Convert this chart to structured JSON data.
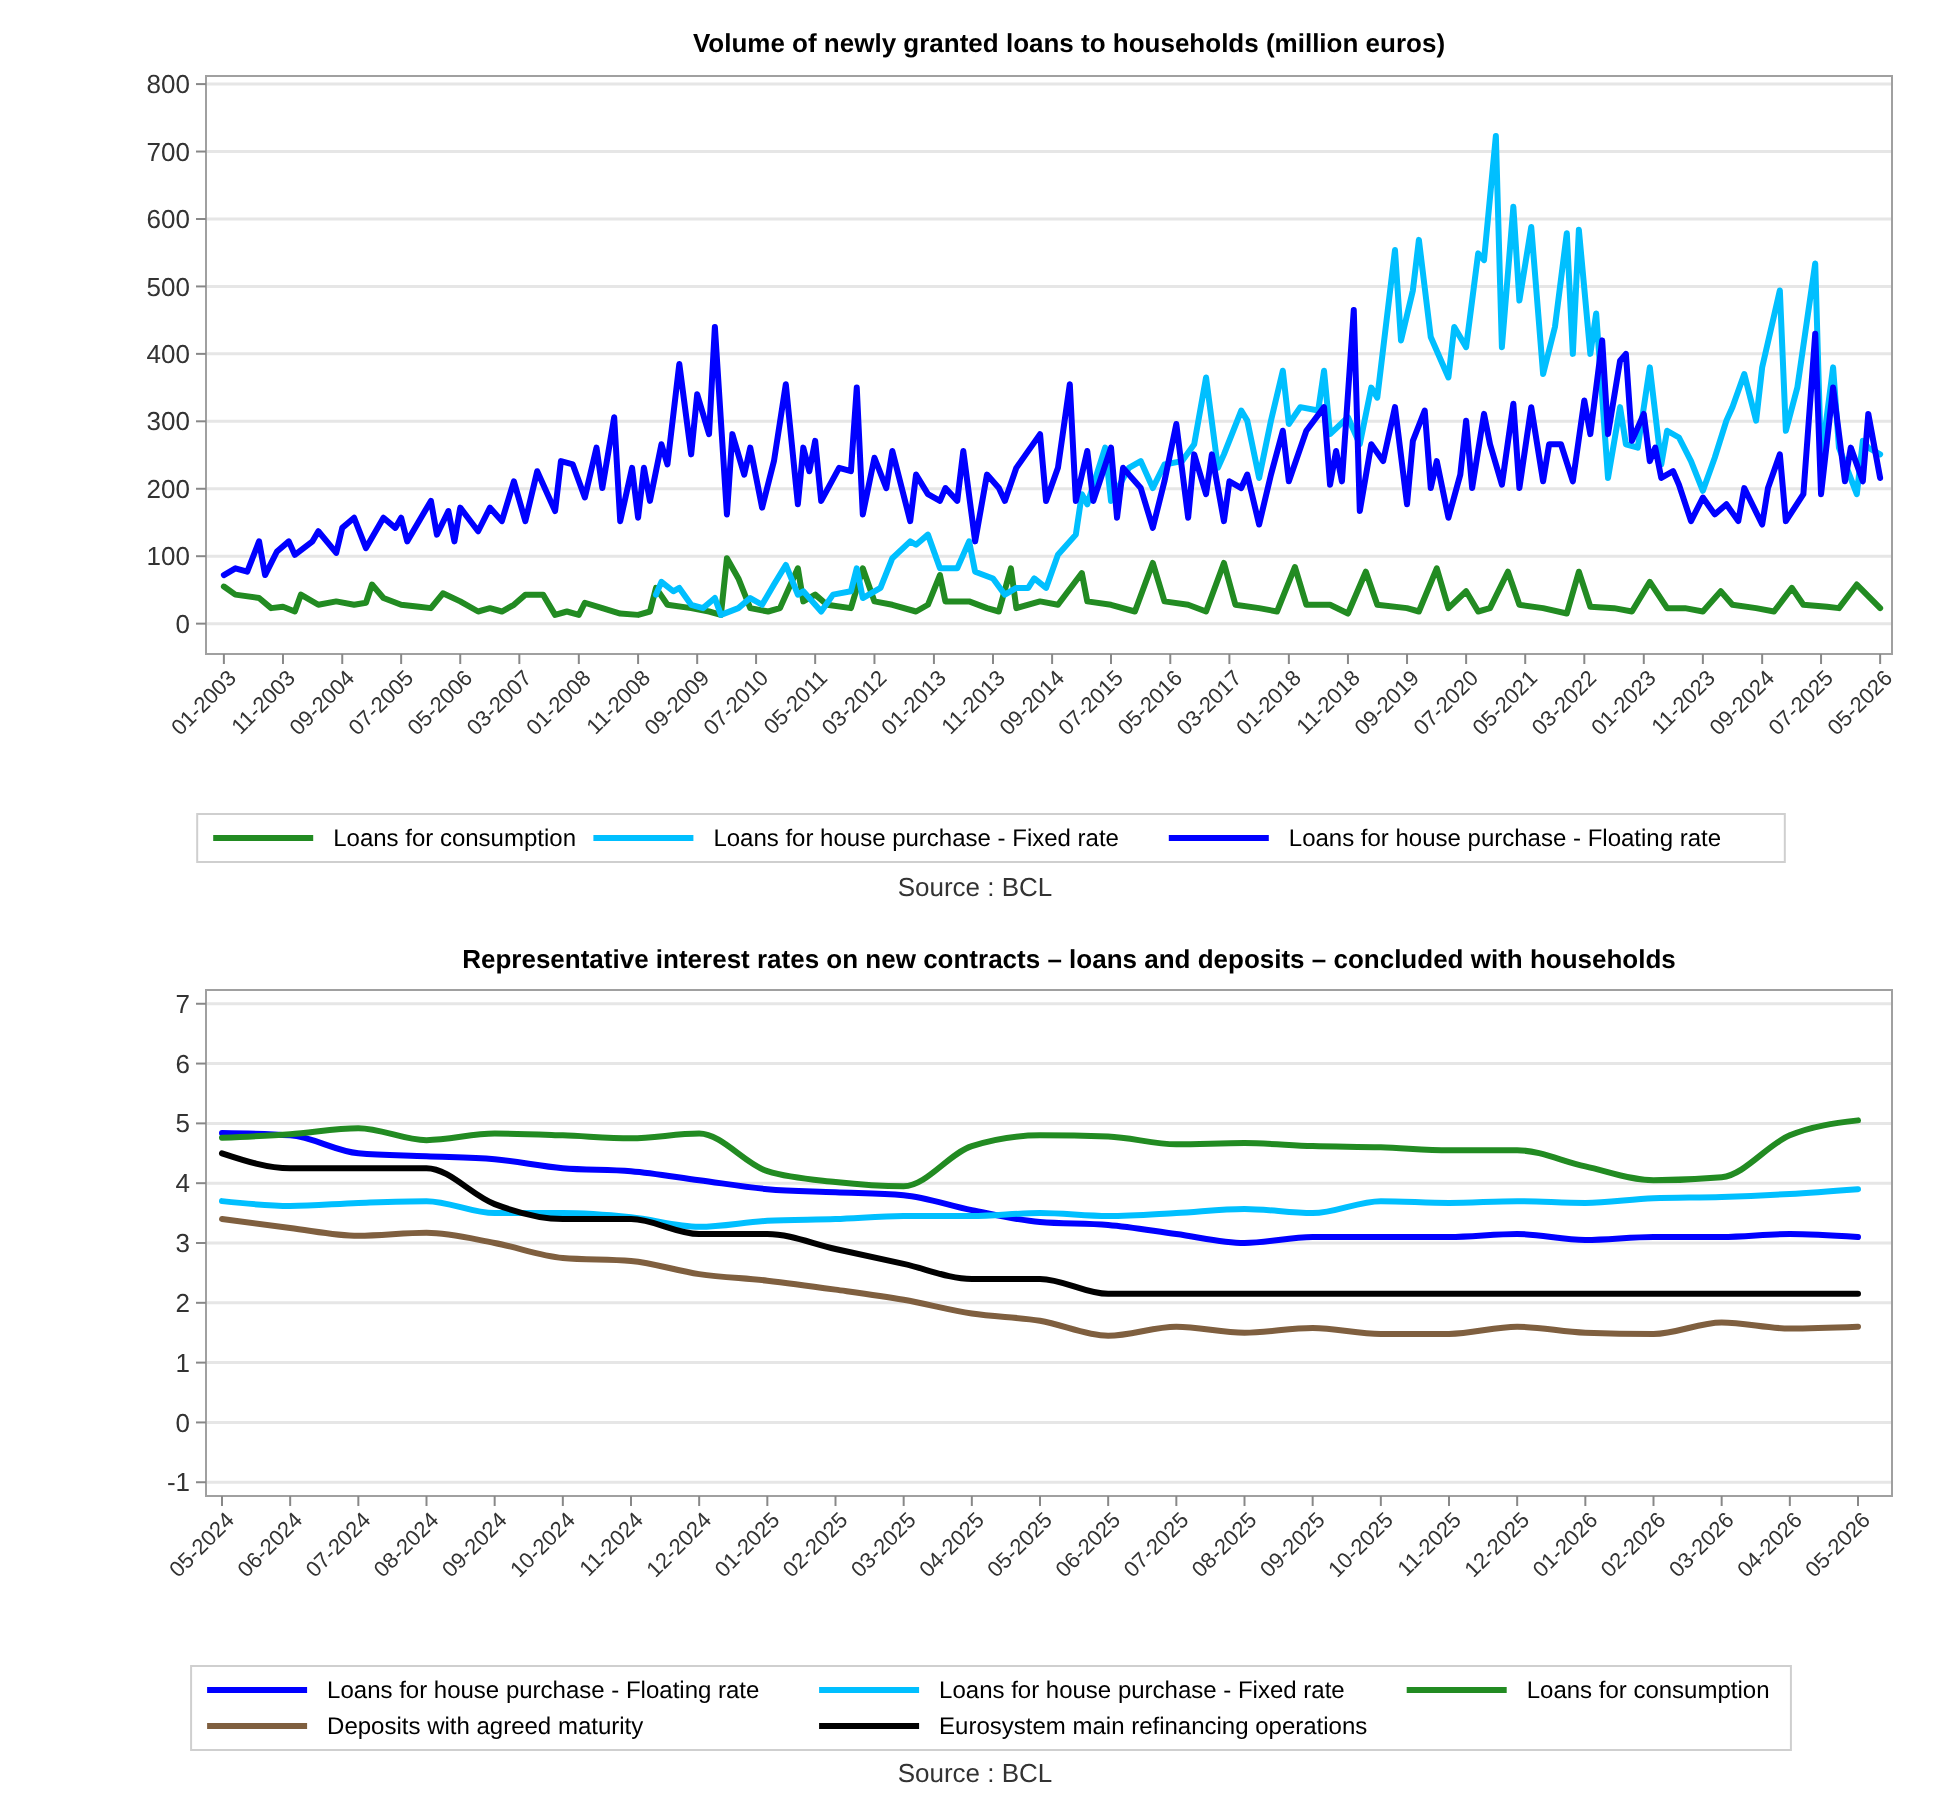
{
  "chart_data": [
    {
      "type": "line",
      "title": "Volume of newly granted loans to households (million euros)",
      "annotations": [
        "Source : BCL"
      ],
      "xlim": [
        "2002-10",
        "2026-07"
      ],
      "xticks": [
        {
          "value": "2003-01",
          "label": "01-2003"
        },
        {
          "value": "2003-11",
          "label": "11-2003"
        },
        {
          "value": "2004-09",
          "label": "09-2004"
        },
        {
          "value": "2005-07",
          "label": "07-2005"
        },
        {
          "value": "2006-05",
          "label": "05-2006"
        },
        {
          "value": "2007-03",
          "label": "03-2007"
        },
        {
          "value": "2008-01",
          "label": "01-2008"
        },
        {
          "value": "2008-11",
          "label": "11-2008"
        },
        {
          "value": "2009-09",
          "label": "09-2009"
        },
        {
          "value": "2010-07",
          "label": "07-2010"
        },
        {
          "value": "2011-05",
          "label": "05-2011"
        },
        {
          "value": "2012-03",
          "label": "03-2012"
        },
        {
          "value": "2013-01",
          "label": "01-2013"
        },
        {
          "value": "2013-11",
          "label": "11-2013"
        },
        {
          "value": "2014-09",
          "label": "09-2014"
        },
        {
          "value": "2015-07",
          "label": "07-2015"
        },
        {
          "value": "2016-05",
          "label": "05-2016"
        },
        {
          "value": "2017-03",
          "label": "03-2017"
        },
        {
          "value": "2018-01",
          "label": "01-2018"
        },
        {
          "value": "2018-11",
          "label": "11-2018"
        },
        {
          "value": "2019-09",
          "label": "09-2019"
        },
        {
          "value": "2020-07",
          "label": "07-2020"
        },
        {
          "value": "2021-05",
          "label": "05-2021"
        },
        {
          "value": "2022-03",
          "label": "03-2022"
        },
        {
          "value": "2023-01",
          "label": "01-2023"
        },
        {
          "value": "2023-11",
          "label": "11-2023"
        },
        {
          "value": "2024-09",
          "label": "09-2024"
        },
        {
          "value": "2025-07",
          "label": "07-2025"
        },
        {
          "value": "2026-05",
          "label": "05-2026"
        }
      ],
      "ylim": [
        -45,
        812
      ],
      "yticks": [
        0,
        100,
        200,
        300,
        400,
        500,
        600,
        700,
        800
      ],
      "grid": "y",
      "legend": "bottom",
      "marker": "none",
      "line_style": "solid",
      "series": [
        {
          "name": "Loans for consumption",
          "color": "#228b22",
          "x": [
            "2003-01",
            "2003-03",
            "2003-07",
            "2003-09",
            "2003-11",
            "2004-01",
            "2004-02",
            "2004-05",
            "2004-08",
            "2004-11",
            "2005-01",
            "2005-02",
            "2005-04",
            "2005-07",
            "2005-10",
            "2005-12",
            "2006-02",
            "2006-05",
            "2006-08",
            "2006-10",
            "2006-12",
            "2007-02",
            "2007-04",
            "2007-07",
            "2007-09",
            "2007-11",
            "2008-01",
            "2008-02",
            "2008-05",
            "2008-08",
            "2008-11",
            "2009-01",
            "2009-02",
            "2009-04",
            "2009-08",
            "2009-11",
            "2010-01",
            "2010-02",
            "2010-04",
            "2010-06",
            "2010-09",
            "2010-11",
            "2011-02",
            "2011-03",
            "2011-05",
            "2011-07",
            "2011-11",
            "2012-01",
            "2012-03",
            "2012-06",
            "2012-10",
            "2012-12",
            "2013-02",
            "2013-03",
            "2013-07",
            "2013-10",
            "2013-12",
            "2014-02",
            "2014-03",
            "2014-07",
            "2014-10",
            "2015-02",
            "2015-03",
            "2015-07",
            "2015-11",
            "2016-02",
            "2016-04",
            "2016-08",
            "2016-11",
            "2017-02",
            "2017-04",
            "2017-08",
            "2017-11",
            "2018-02",
            "2018-04",
            "2018-08",
            "2018-11",
            "2019-02",
            "2019-04",
            "2019-09",
            "2019-11",
            "2020-02",
            "2020-04",
            "2020-07",
            "2020-09",
            "2020-11",
            "2021-02",
            "2021-04",
            "2021-08",
            "2021-12",
            "2022-02",
            "2022-04",
            "2022-08",
            "2022-11",
            "2023-02",
            "2023-05",
            "2023-08",
            "2023-11",
            "2024-02",
            "2024-04",
            "2024-08",
            "2024-11",
            "2025-02",
            "2025-04",
            "2025-08",
            "2025-10",
            "2026-01",
            "2026-05"
          ],
          "values": [
            55,
            43,
            38,
            23,
            25,
            18,
            43,
            28,
            33,
            28,
            31,
            58,
            38,
            28,
            25,
            23,
            45,
            33,
            18,
            23,
            18,
            28,
            43,
            43,
            13,
            18,
            13,
            31,
            23,
            15,
            13,
            18,
            53,
            28,
            23,
            18,
            13,
            97,
            67,
            23,
            18,
            23,
            82,
            33,
            43,
            28,
            23,
            82,
            33,
            28,
            18,
            28,
            72,
            33,
            33,
            23,
            18,
            82,
            23,
            33,
            28,
            75,
            33,
            28,
            18,
            90,
            33,
            28,
            18,
            90,
            28,
            23,
            18,
            84,
            28,
            28,
            15,
            77,
            28,
            23,
            18,
            82,
            23,
            48,
            18,
            23,
            77,
            28,
            23,
            15,
            77,
            25,
            23,
            18,
            62,
            23,
            23,
            18,
            48,
            28,
            23,
            18,
            53,
            28,
            25,
            23,
            58,
            23
          ]
        },
        {
          "name": "Loans for house purchase - Fixed rate",
          "color": "#00bfff",
          "x": [
            "2009-02",
            "2009-03",
            "2009-05",
            "2009-06",
            "2009-08",
            "2009-10",
            "2009-12",
            "2010-01",
            "2010-04",
            "2010-06",
            "2010-08",
            "2010-10",
            "2010-12",
            "2011-02",
            "2011-03",
            "2011-06",
            "2011-08",
            "2011-11",
            "2011-12",
            "2012-01",
            "2012-04",
            "2012-06",
            "2012-09",
            "2012-10",
            "2012-12",
            "2013-02",
            "2013-05",
            "2013-07",
            "2013-08",
            "2013-11",
            "2014-01",
            "2014-03",
            "2014-05",
            "2014-06",
            "2014-08",
            "2014-10",
            "2015-01",
            "2015-02",
            "2015-03",
            "2015-06",
            "2015-07",
            "2015-10",
            "2015-12",
            "2016-02",
            "2016-04",
            "2016-07",
            "2016-09",
            "2016-11",
            "2017-01",
            "2017-02",
            "2017-05",
            "2017-06",
            "2017-08",
            "2017-10",
            "2017-12",
            "2018-01",
            "2018-03",
            "2018-06",
            "2018-07",
            "2018-08",
            "2018-11",
            "2019-01",
            "2019-03",
            "2019-04",
            "2019-07",
            "2019-08",
            "2019-10",
            "2019-11",
            "2020-01",
            "2020-04",
            "2020-05",
            "2020-07",
            "2020-09",
            "2020-10",
            "2020-12",
            "2021-01",
            "2021-03",
            "2021-04",
            "2021-06",
            "2021-08",
            "2021-10",
            "2021-12",
            "2022-01",
            "2022-02",
            "2022-04",
            "2022-05",
            "2022-07",
            "2022-09",
            "2022-10",
            "2022-12",
            "2023-02",
            "2023-04",
            "2023-05",
            "2023-07",
            "2023-09",
            "2023-11",
            "2024-01",
            "2024-03",
            "2024-04",
            "2024-06",
            "2024-08",
            "2024-09",
            "2024-12",
            "2025-01",
            "2025-03",
            "2025-06",
            "2025-07",
            "2025-09",
            "2025-10",
            "2026-01",
            "2026-02",
            "2026-03",
            "2026-05"
          ],
          "values": [
            43,
            62,
            48,
            53,
            28,
            23,
            38,
            13,
            23,
            38,
            28,
            58,
            87,
            43,
            48,
            18,
            43,
            48,
            82,
            38,
            53,
            97,
            122,
            117,
            132,
            82,
            82,
            122,
            77,
            67,
            43,
            53,
            53,
            67,
            53,
            102,
            132,
            192,
            177,
            261,
            182,
            231,
            241,
            201,
            236,
            241,
            266,
            365,
            231,
            251,
            316,
            301,
            216,
            301,
            375,
            296,
            321,
            316,
            375,
            281,
            306,
            266,
            350,
            335,
            554,
            420,
            494,
            569,
            425,
            365,
            440,
            410,
            549,
            539,
            723,
            410,
            618,
            479,
            588,
            370,
            440,
            579,
            400,
            584,
            400,
            460,
            216,
            321,
            266,
            261,
            380,
            236,
            286,
            276,
            241,
            197,
            246,
            301,
            321,
            370,
            301,
            380,
            494,
            286,
            350,
            534,
            241,
            380,
            261,
            192,
            271,
            261,
            251
          ]
        },
        {
          "name": "Loans for house purchase - Floating rate",
          "color": "#0000ff",
          "x": [
            "2003-01",
            "2003-03",
            "2003-05",
            "2003-07",
            "2003-08",
            "2003-10",
            "2003-12",
            "2004-01",
            "2004-04",
            "2004-05",
            "2004-08",
            "2004-09",
            "2004-11",
            "2005-01",
            "2005-04",
            "2005-06",
            "2005-07",
            "2005-08",
            "2005-12",
            "2006-01",
            "2006-03",
            "2006-04",
            "2006-05",
            "2006-08",
            "2006-10",
            "2006-12",
            "2007-02",
            "2007-04",
            "2007-06",
            "2007-09",
            "2007-10",
            "2007-12",
            "2008-02",
            "2008-04",
            "2008-05",
            "2008-07",
            "2008-08",
            "2008-10",
            "2008-11",
            "2008-12",
            "2009-01",
            "2009-03",
            "2009-04",
            "2009-06",
            "2009-08",
            "2009-09",
            "2009-11",
            "2009-12",
            "2010-02",
            "2010-03",
            "2010-05",
            "2010-06",
            "2010-08",
            "2010-10",
            "2010-12",
            "2011-02",
            "2011-03",
            "2011-04",
            "2011-05",
            "2011-06",
            "2011-09",
            "2011-11",
            "2011-12",
            "2012-01",
            "2012-03",
            "2012-05",
            "2012-06",
            "2012-09",
            "2012-10",
            "2012-12",
            "2013-02",
            "2013-03",
            "2013-05",
            "2013-06",
            "2013-08",
            "2013-10",
            "2013-12",
            "2014-01",
            "2014-03",
            "2014-07",
            "2014-08",
            "2014-10",
            "2014-12",
            "2015-01",
            "2015-03",
            "2015-04",
            "2015-07",
            "2015-08",
            "2015-09",
            "2015-12",
            "2016-02",
            "2016-04",
            "2016-06",
            "2016-08",
            "2016-09",
            "2016-11",
            "2016-12",
            "2017-02",
            "2017-03",
            "2017-05",
            "2017-06",
            "2017-08",
            "2017-10",
            "2017-12",
            "2018-01",
            "2018-04",
            "2018-07",
            "2018-08",
            "2018-09",
            "2018-10",
            "2018-12",
            "2019-01",
            "2019-03",
            "2019-05",
            "2019-07",
            "2019-09",
            "2019-10",
            "2019-12",
            "2020-01",
            "2020-02",
            "2020-04",
            "2020-06",
            "2020-07",
            "2020-08",
            "2020-10",
            "2020-11",
            "2021-01",
            "2021-03",
            "2021-04",
            "2021-06",
            "2021-08",
            "2021-09",
            "2021-11",
            "2022-01",
            "2022-03",
            "2022-04",
            "2022-06",
            "2022-07",
            "2022-09",
            "2022-10",
            "2022-11",
            "2023-01",
            "2023-02",
            "2023-03",
            "2023-04",
            "2023-06",
            "2023-07",
            "2023-09",
            "2023-11",
            "2024-01",
            "2024-03",
            "2024-05",
            "2024-06",
            "2024-09",
            "2024-10",
            "2024-12",
            "2025-01",
            "2025-04",
            "2025-06",
            "2025-07",
            "2025-09",
            "2025-11",
            "2025-12",
            "2026-02",
            "2026-03",
            "2026-05"
          ],
          "values": [
            72,
            82,
            77,
            122,
            72,
            107,
            122,
            102,
            122,
            137,
            105,
            142,
            157,
            112,
            157,
            142,
            157,
            122,
            182,
            132,
            167,
            122,
            172,
            137,
            172,
            152,
            211,
            152,
            226,
            167,
            241,
            236,
            187,
            261,
            201,
            306,
            152,
            231,
            157,
            231,
            182,
            266,
            236,
            385,
            251,
            340,
            281,
            440,
            162,
            281,
            221,
            261,
            172,
            241,
            355,
            177,
            261,
            226,
            271,
            182,
            231,
            226,
            350,
            162,
            246,
            201,
            256,
            152,
            221,
            192,
            182,
            201,
            182,
            256,
            122,
            221,
            201,
            182,
            231,
            281,
            182,
            231,
            355,
            182,
            256,
            182,
            261,
            157,
            231,
            201,
            142,
            211,
            296,
            157,
            251,
            192,
            251,
            152,
            211,
            201,
            221,
            147,
            221,
            286,
            211,
            286,
            321,
            206,
            256,
            211,
            465,
            167,
            266,
            241,
            321,
            177,
            271,
            316,
            201,
            241,
            157,
            221,
            301,
            201,
            311,
            266,
            206,
            326,
            201,
            321,
            211,
            266,
            266,
            211,
            331,
            281,
            420,
            281,
            390,
            400,
            271,
            311,
            241,
            261,
            216,
            226,
            206,
            152,
            187,
            162,
            177,
            152,
            201,
            147,
            201,
            251,
            152,
            192,
            430,
            192,
            350,
            211,
            261,
            211,
            311,
            216
          ]
        }
      ]
    },
    {
      "type": "line",
      "title": "Representative interest rates on new contracts – loans and deposits – concluded with households",
      "annotations": [
        "Source : BCL"
      ],
      "categories": [
        "05-2024",
        "06-2024",
        "07-2024",
        "08-2024",
        "09-2024",
        "10-2024",
        "11-2024",
        "12-2024",
        "01-2025",
        "02-2025",
        "03-2025",
        "04-2025",
        "05-2025",
        "06-2025",
        "07-2025",
        "08-2025",
        "09-2025",
        "10-2025",
        "11-2025",
        "12-2025",
        "01-2026",
        "02-2026",
        "03-2026",
        "04-2026",
        "05-2026"
      ],
      "ylim": [
        -1.23,
        7.23
      ],
      "yticks": [
        -1,
        0,
        1,
        2,
        3,
        4,
        5,
        6,
        7
      ],
      "grid": "y",
      "legend": "bottom",
      "marker": "none",
      "line_style": "solid",
      "series": [
        {
          "name": "Loans for house purchase - Floating rate",
          "color": "#0000ff",
          "values": [
            4.84,
            4.8,
            4.5,
            4.45,
            4.4,
            4.25,
            4.2,
            4.05,
            3.9,
            3.85,
            3.8,
            3.55,
            3.35,
            3.3,
            3.15,
            3.0,
            3.1,
            3.1,
            3.1,
            3.15,
            3.05,
            3.1,
            3.1,
            3.15,
            3.1
          ]
        },
        {
          "name": "Loans for house purchase - Fixed rate",
          "color": "#00bfff",
          "values": [
            3.7,
            3.62,
            3.67,
            3.7,
            3.5,
            3.5,
            3.43,
            3.27,
            3.37,
            3.4,
            3.45,
            3.45,
            3.5,
            3.45,
            3.5,
            3.57,
            3.5,
            3.7,
            3.67,
            3.7,
            3.67,
            3.75,
            3.77,
            3.82,
            3.9
          ]
        },
        {
          "name": "Loans for consumption",
          "color": "#228b22",
          "values": [
            4.76,
            4.82,
            4.92,
            4.72,
            4.83,
            4.8,
            4.75,
            4.83,
            4.2,
            4.02,
            3.95,
            4.62,
            4.8,
            4.78,
            4.65,
            4.67,
            4.62,
            4.6,
            4.55,
            4.55,
            4.28,
            4.05,
            4.1,
            4.8,
            5.05
          ]
        },
        {
          "name": "Deposits with agreed maturity",
          "color": "#7f5f3f",
          "values": [
            3.4,
            3.25,
            3.12,
            3.17,
            3.0,
            2.75,
            2.7,
            2.48,
            2.37,
            2.22,
            2.05,
            1.82,
            1.7,
            1.45,
            1.6,
            1.5,
            1.58,
            1.48,
            1.48,
            1.6,
            1.5,
            1.48,
            1.67,
            1.57,
            1.6
          ]
        },
        {
          "name": "Eurosystem main refinancing operations",
          "color": "#000000",
          "values": [
            4.5,
            4.25,
            4.25,
            4.25,
            3.65,
            3.4,
            3.4,
            3.15,
            3.15,
            2.9,
            2.65,
            2.4,
            2.4,
            2.15,
            2.15,
            2.15,
            2.15,
            2.15,
            2.15,
            2.15,
            2.15,
            2.15,
            2.15,
            2.15,
            2.15
          ]
        }
      ]
    }
  ]
}
